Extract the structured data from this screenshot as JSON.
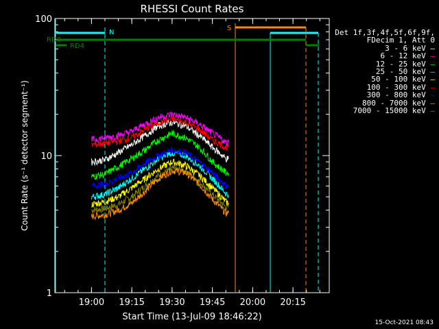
{
  "chart_data": {
    "type": "line",
    "title": "RHESSI Count Rates",
    "xlabel": "Start Time (13-Jul-09 18:46:22)",
    "ylabel": "Count Rate (s⁻¹ detector segment⁻¹)",
    "yscale": "log",
    "ylim": [
      1,
      100
    ],
    "xlim": [
      "18:46:22",
      "20:28:30"
    ],
    "x_ticks": [
      "19:00",
      "19:15",
      "19:30",
      "19:45",
      "20:00",
      "20:15"
    ],
    "y_ticks": [
      "1",
      "10",
      "100"
    ],
    "legend": {
      "placement": "outside-right",
      "header": [
        "Det 1f,3f,4f,5f,6f,9f,",
        "FDecim 1, Att 0"
      ],
      "entries": [
        {
          "label": "3 - 6 keV",
          "color": "#ffffff"
        },
        {
          "label": "6 - 12 keV",
          "color": "#ff00ff"
        },
        {
          "label": "12 - 25 keV",
          "color": "#00ff00"
        },
        {
          "label": "25 - 50 keV",
          "color": "#00ffff"
        },
        {
          "label": "50 - 100 keV",
          "color": "#ffff00"
        },
        {
          "label": "100 - 300 keV",
          "color": "#ff0000"
        },
        {
          "label": "300 - 800 keV",
          "color": "#0000ff"
        },
        {
          "label": "800 - 7000 keV",
          "color": "#ff8c00"
        },
        {
          "label": "7000 - 15000 keV",
          "color": "#808000"
        }
      ]
    },
    "x_times": [
      "19:00",
      "19:05",
      "19:10",
      "19:15",
      "19:20",
      "19:25",
      "19:30",
      "19:35",
      "19:40",
      "19:45",
      "19:50",
      "19:51"
    ],
    "series": [
      {
        "name": "3 - 6 keV",
        "color": "#ffffff",
        "values": [
          9.0,
          9.3,
          10.5,
          12.0,
          14.0,
          16.5,
          17.5,
          16.5,
          14.0,
          11.5,
          9.5,
          9.5
        ]
      },
      {
        "name": "6 - 12 keV",
        "color": "#ff00ff",
        "values": [
          13.0,
          13.5,
          14.0,
          15.0,
          17.0,
          19.0,
          20.0,
          19.0,
          17.0,
          14.5,
          12.5,
          12.5
        ]
      },
      {
        "name": "12 - 25 keV",
        "color": "#00ff00",
        "values": [
          7.0,
          7.3,
          8.3,
          9.5,
          11.0,
          13.0,
          14.5,
          13.5,
          11.5,
          9.0,
          7.5,
          7.5
        ]
      },
      {
        "name": "25 - 50 keV",
        "color": "#00ffff",
        "values": [
          5.0,
          5.2,
          5.8,
          6.8,
          8.0,
          9.5,
          10.5,
          10.0,
          8.5,
          6.8,
          5.3,
          5.2
        ]
      },
      {
        "name": "50 - 100 keV",
        "color": "#ffff00",
        "values": [
          4.4,
          4.6,
          5.0,
          5.8,
          6.8,
          8.0,
          9.0,
          8.5,
          7.2,
          5.8,
          4.6,
          4.5
        ]
      },
      {
        "name": "100 - 300 keV",
        "color": "#ff0000",
        "values": [
          12.0,
          12.3,
          12.8,
          13.5,
          15.5,
          17.5,
          18.5,
          17.5,
          15.5,
          13.0,
          11.5,
          11.5
        ]
      },
      {
        "name": "300 - 800 keV",
        "color": "#0000ff",
        "values": [
          6.0,
          6.2,
          6.8,
          7.5,
          8.8,
          10.0,
          11.0,
          10.5,
          9.0,
          7.5,
          6.0,
          6.0
        ]
      },
      {
        "name": "800 - 7000 keV",
        "color": "#ff8c00",
        "values": [
          3.6,
          3.7,
          4.0,
          4.5,
          5.5,
          6.8,
          7.8,
          7.5,
          6.2,
          4.8,
          3.8,
          3.8
        ]
      },
      {
        "name": "7000 - 15000 keV",
        "color": "#808000",
        "values": [
          4.0,
          4.1,
          4.4,
          5.0,
          6.0,
          7.2,
          8.0,
          7.8,
          6.5,
          5.2,
          4.2,
          4.2
        ]
      }
    ],
    "annotations": [
      {
        "text": "N",
        "color": "#00ffff"
      },
      {
        "text": "S",
        "color": "#ff8c00"
      },
      {
        "text": "RD0",
        "color": "#008000"
      },
      {
        "text": "RD4",
        "color": "#008000"
      }
    ]
  },
  "footer": {
    "timestamp": "15-Oct-2021 08:43"
  }
}
